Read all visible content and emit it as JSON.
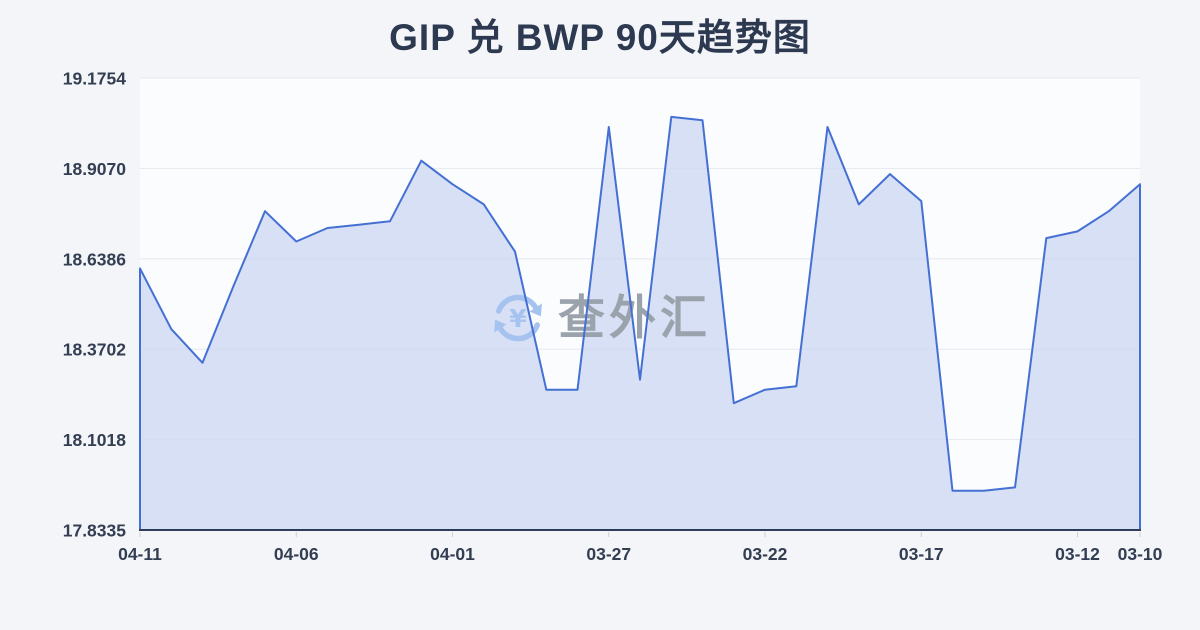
{
  "title": "GIP 兑 BWP 90天趋势图",
  "watermark": {
    "text": "查外汇",
    "icon": "currency-exchange-refresh-icon",
    "icon_symbol": "¥",
    "text_color": "#9aa2ac",
    "icon_color": "#a6c3f0"
  },
  "chart_data": {
    "type": "area",
    "title": "GIP 兑 BWP 90天趋势图",
    "x": [
      "04-11",
      "04-10",
      "04-09",
      "04-08",
      "04-07",
      "04-06",
      "04-05",
      "04-04",
      "04-03",
      "04-02",
      "04-01",
      "03-31",
      "03-30",
      "03-29",
      "03-28",
      "03-27",
      "03-26",
      "03-25",
      "03-24",
      "03-23",
      "03-22",
      "03-21",
      "03-20",
      "03-19",
      "03-18",
      "03-17",
      "03-16",
      "03-15",
      "03-14",
      "03-13",
      "03-12",
      "03-11",
      "03-10"
    ],
    "values": [
      18.61,
      18.43,
      18.33,
      18.56,
      18.78,
      18.69,
      18.73,
      18.74,
      18.75,
      18.93,
      18.86,
      18.8,
      18.66,
      18.25,
      18.25,
      19.03,
      18.28,
      19.06,
      19.05,
      18.21,
      18.25,
      18.26,
      19.03,
      18.8,
      18.89,
      18.81,
      17.95,
      17.95,
      17.96,
      18.7,
      18.72,
      18.78,
      18.86
    ],
    "x_tick_labels": [
      "04-11",
      "04-06",
      "04-01",
      "03-27",
      "03-22",
      "03-17",
      "03-12",
      "03-10"
    ],
    "y_ticks": [
      19.1754,
      18.907,
      18.6386,
      18.3702,
      18.1018,
      17.8335
    ],
    "y_tick_labels": [
      "19.1754",
      "18.9070",
      "18.6386",
      "18.3702",
      "18.1018",
      "17.8335"
    ],
    "ylim": [
      17.8335,
      19.1754
    ],
    "xlabel": "",
    "ylabel": "",
    "grid": true,
    "legend": "none",
    "x_axis_reversed_time": true,
    "colors": {
      "line": "#4470d4",
      "fill": "#c9d6f1",
      "axis": "#2e3d5a",
      "gridline": "#e4e8ef",
      "tick": "#c9d1dd",
      "label": "#333e52",
      "title": "#2c3950",
      "plot_background": "#fbfcfe",
      "page_background": "#f3f5f8"
    }
  }
}
